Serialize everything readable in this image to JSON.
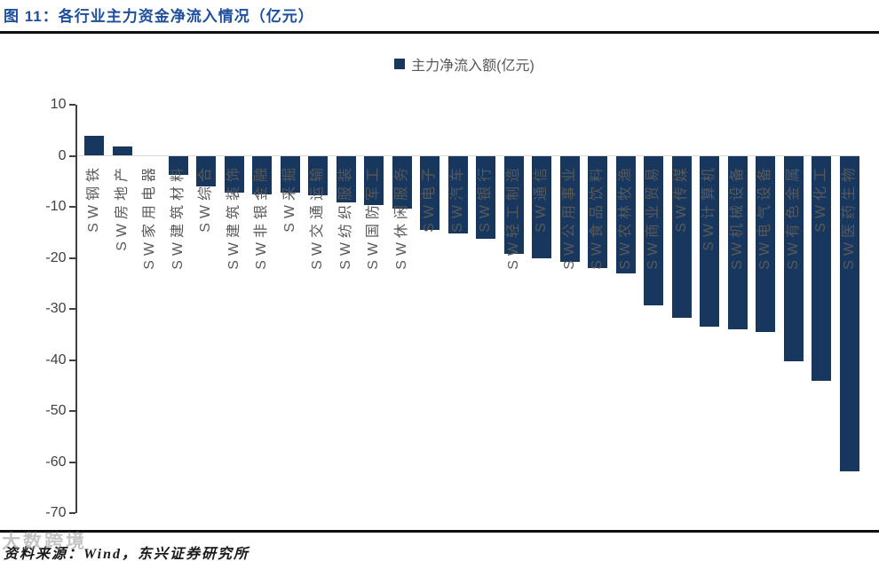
{
  "header": {
    "title": "图 11：各行业主力资金净流入情况（亿元）"
  },
  "chart_data": {
    "type": "bar",
    "title": "图 11：各行业主力资金净流入情况（亿元）",
    "legend": "主力净流入额(亿元)",
    "legend_position": "top-center",
    "categories": [
      "SW钢铁",
      "SW房地产",
      "SW家用电器",
      "SW建筑材料",
      "SW综合",
      "SW建筑装饰",
      "SW非银金融",
      "SW采掘",
      "SW交通运输",
      "SW纺织服装",
      "SW国防军工",
      "SW休闲服务",
      "SW电子",
      "SW汽车",
      "SW银行",
      "SW轻工制造",
      "SW通信",
      "SW公用事业",
      "SW食品饮料",
      "SW农林牧渔",
      "SW商业贸易",
      "SW传媒",
      "SW计算机",
      "SW机械设备",
      "SW电气设备",
      "SW有色金属",
      "SW化工",
      "SW医药生物"
    ],
    "values": [
      3.9,
      1.9,
      0,
      -3.8,
      -6.0,
      -7.2,
      -7.5,
      -7.2,
      -7.8,
      -9.2,
      -9.7,
      -10.4,
      -14.5,
      -15.3,
      -16.2,
      -19.3,
      -20.0,
      -20.8,
      -22.0,
      -23.0,
      -29.3,
      -31.8,
      -33.5,
      -34.0,
      -34.5,
      -40.2,
      -44.0,
      -61.8
    ],
    "ylim": [
      -70,
      10
    ],
    "ytick_interval": 10,
    "ytick_labels": [
      "10",
      "0",
      "-10",
      "-20",
      "-30",
      "-40",
      "-50",
      "-60",
      "-70"
    ],
    "grid": "zero line only",
    "bar_color": "#17375E"
  },
  "colors": {
    "title_blue": "#1D4F9C",
    "bar_navy": "#17375E",
    "axis_text": "#404040",
    "x_label_gray": "#595959",
    "zero_line": "#D9D9D9",
    "rule_black": "#101010"
  },
  "footer": {
    "source": "资料来源：Wind，东兴证券研究所",
    "watermark": "大数跨境"
  }
}
